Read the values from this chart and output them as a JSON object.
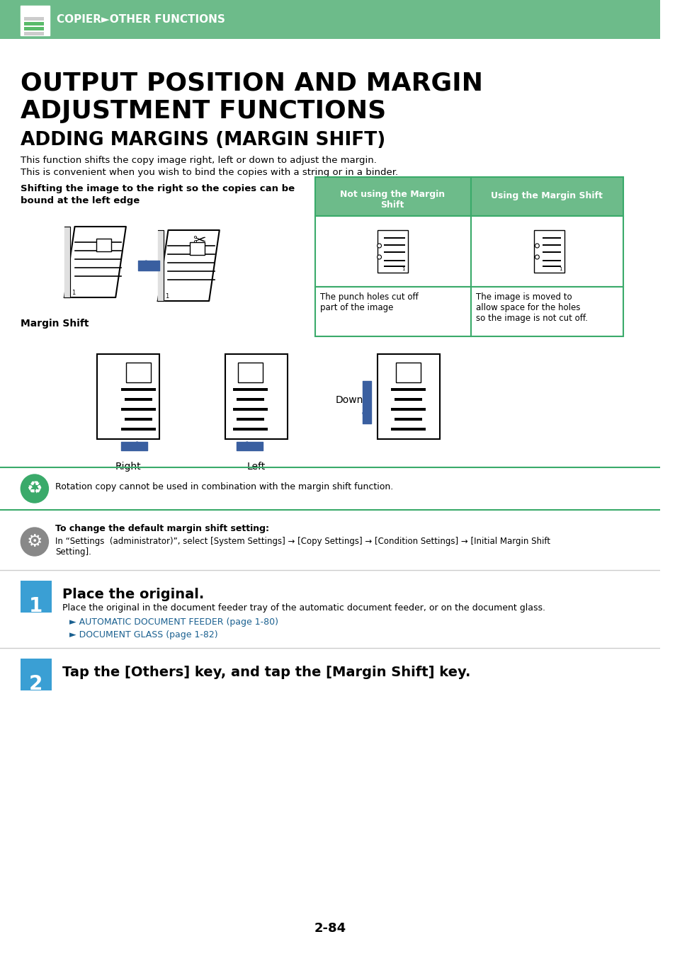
{
  "bg_color": "#ffffff",
  "header_bg": "#6dbb8a",
  "header_text_color": "#ffffff",
  "header_label": "COPIER►OTHER FUNCTIONS",
  "main_title_line1": "OUTPUT POSITION AND MARGIN",
  "main_title_line2": "ADJUSTMENT FUNCTIONS",
  "section_title": "ADDING MARGINS (MARGIN SHIFT)",
  "body_text_line1": "This function shifts the copy image right, left or down to adjust the margin.",
  "body_text_line2": "This is convenient when you wish to bind the copies with a string or in a binder.",
  "bold_text_line1": "Shifting the image to the right so the copies can be",
  "bold_text_line2": "bound at the left edge",
  "table_header1": "Not using the Margin\nShift",
  "table_header2": "Using the Margin Shift",
  "table_text1": "The punch holes cut off\npart of the image",
  "table_text2": "The image is moved to\nallow space for the holes\nso the image is not cut off.",
  "table_header_bg": "#6dbb8a",
  "table_border_color": "#3aaa6a",
  "margin_shift_label": "Margin Shift",
  "right_label": "Right",
  "left_label": "Left",
  "down_label": "Down",
  "note_text": "Rotation copy cannot be used in combination with the margin shift function.",
  "tip_title": "To change the default margin shift setting:",
  "tip_text": "In “Settings  (administrator)”, select [System Settings] → [Copy Settings] → [Condition Settings] → [Initial Margin Shift\nSetting].",
  "step1_num": "1",
  "step1_title": "Place the original.",
  "step1_text": "Place the original in the document feeder tray of the automatic document feeder, or on the document glass.",
  "step1_link1": "AUTOMATIC DOCUMENT FEEDER (page 1-80)",
  "step1_link2": "DOCUMENT GLASS (page 1-82)",
  "step2_num": "2",
  "step2_title": "Tap the [Others] key, and tap the [Margin Shift] key.",
  "page_num": "2-84",
  "arrow_color": "#3a5fa0",
  "step_bg": "#3a9fd4",
  "link_color": "#1a6090",
  "gray_color": "#b0b0b0"
}
